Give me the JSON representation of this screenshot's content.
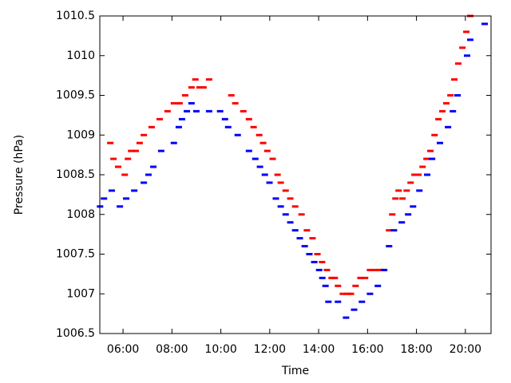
{
  "chart_data": {
    "type": "scatter",
    "x_label": "Time",
    "y_label": "Pressure (hPa)",
    "xlim": [
      5.05,
      21.05
    ],
    "xticks": [
      {
        "value": 6,
        "label": "06:00"
      },
      {
        "value": 8,
        "label": "08:00"
      },
      {
        "value": 10,
        "label": "10:00"
      },
      {
        "value": 12,
        "label": "12:00"
      },
      {
        "value": 14,
        "label": "14:00"
      },
      {
        "value": 16,
        "label": "16:00"
      },
      {
        "value": 18,
        "label": "18:00"
      },
      {
        "value": 20,
        "label": "20:00"
      }
    ],
    "ylim": [
      1006.5,
      1010.5
    ],
    "yticks": [
      1006.5,
      1007,
      1007.5,
      1008,
      1008.5,
      1009,
      1009.5,
      1010,
      1010.5
    ],
    "grid": false,
    "series": [
      {
        "color": "#ff0000",
        "x": [
          5.48,
          5.61,
          5.8,
          6.07,
          6.2,
          6.33,
          6.52,
          6.68,
          6.85,
          7.17,
          7.5,
          7.82,
          8.08,
          8.31,
          8.54,
          8.8,
          8.96,
          9.13,
          9.29,
          9.52,
          10.43,
          10.59,
          10.92,
          11.15,
          11.34,
          11.57,
          11.73,
          11.9,
          12.12,
          12.32,
          12.45,
          12.65,
          12.84,
          13.04,
          13.3,
          13.52,
          13.75,
          13.95,
          14.14,
          14.34,
          14.53,
          14.66,
          14.79,
          14.99,
          15.19,
          15.32,
          15.51,
          15.71,
          15.9,
          16.1,
          16.29,
          16.49,
          16.62,
          16.88,
          17.01,
          17.14,
          17.27,
          17.43,
          17.6,
          17.76,
          17.92,
          18.08,
          18.25,
          18.41,
          18.57,
          18.74,
          18.9,
          19.06,
          19.22,
          19.39,
          19.55,
          19.71,
          19.88,
          20.04,
          20.2
        ],
        "values": [
          1008.9,
          1008.7,
          1008.6,
          1008.5,
          1008.7,
          1008.8,
          1008.8,
          1008.9,
          1009.0,
          1009.1,
          1009.2,
          1009.3,
          1009.4,
          1009.4,
          1009.5,
          1009.6,
          1009.7,
          1009.6,
          1009.6,
          1009.7,
          1009.5,
          1009.4,
          1009.3,
          1009.2,
          1009.1,
          1009.0,
          1008.9,
          1008.8,
          1008.7,
          1008.5,
          1008.4,
          1008.3,
          1008.2,
          1008.1,
          1008.0,
          1007.8,
          1007.7,
          1007.5,
          1007.4,
          1007.3,
          1007.2,
          1007.2,
          1007.1,
          1007.0,
          1007.0,
          1007.0,
          1007.1,
          1007.2,
          1007.2,
          1007.3,
          1007.3,
          1007.3,
          1007.3,
          1007.8,
          1008.0,
          1008.2,
          1008.3,
          1008.2,
          1008.3,
          1008.4,
          1008.5,
          1008.5,
          1008.6,
          1008.7,
          1008.8,
          1009.0,
          1009.2,
          1009.3,
          1009.4,
          1009.5,
          1009.7,
          1009.9,
          1010.1,
          1010.3,
          1010.5
        ]
      },
      {
        "color": "#0000ff",
        "x": [
          5.06,
          5.22,
          5.54,
          5.87,
          6.13,
          6.46,
          6.85,
          7.04,
          7.24,
          7.56,
          8.08,
          8.28,
          8.41,
          8.61,
          8.8,
          9.0,
          9.52,
          9.97,
          10.17,
          10.3,
          10.69,
          11.15,
          11.41,
          11.6,
          11.8,
          11.99,
          12.25,
          12.45,
          12.65,
          12.84,
          13.04,
          13.23,
          13.43,
          13.62,
          13.82,
          14.02,
          14.15,
          14.28,
          14.4,
          14.79,
          15.12,
          15.45,
          15.77,
          16.1,
          16.42,
          16.68,
          16.88,
          17.08,
          17.4,
          17.66,
          17.86,
          18.12,
          18.44,
          18.64,
          18.96,
          19.29,
          19.49,
          19.68,
          20.07,
          20.2,
          20.79
        ],
        "values": [
          1008.1,
          1008.2,
          1008.3,
          1008.1,
          1008.2,
          1008.3,
          1008.4,
          1008.5,
          1008.6,
          1008.8,
          1008.9,
          1009.1,
          1009.2,
          1009.3,
          1009.4,
          1009.3,
          1009.3,
          1009.3,
          1009.2,
          1009.1,
          1009.0,
          1008.8,
          1008.7,
          1008.6,
          1008.5,
          1008.4,
          1008.2,
          1008.1,
          1008.0,
          1007.9,
          1007.8,
          1007.7,
          1007.6,
          1007.5,
          1007.4,
          1007.3,
          1007.2,
          1007.1,
          1006.9,
          1006.9,
          1006.7,
          1006.8,
          1006.9,
          1007.0,
          1007.1,
          1007.3,
          1007.6,
          1007.8,
          1007.9,
          1008.0,
          1008.1,
          1008.3,
          1008.5,
          1008.7,
          1008.9,
          1009.1,
          1009.3,
          1009.5,
          1010.0,
          1010.2,
          1010.4
        ]
      }
    ]
  }
}
